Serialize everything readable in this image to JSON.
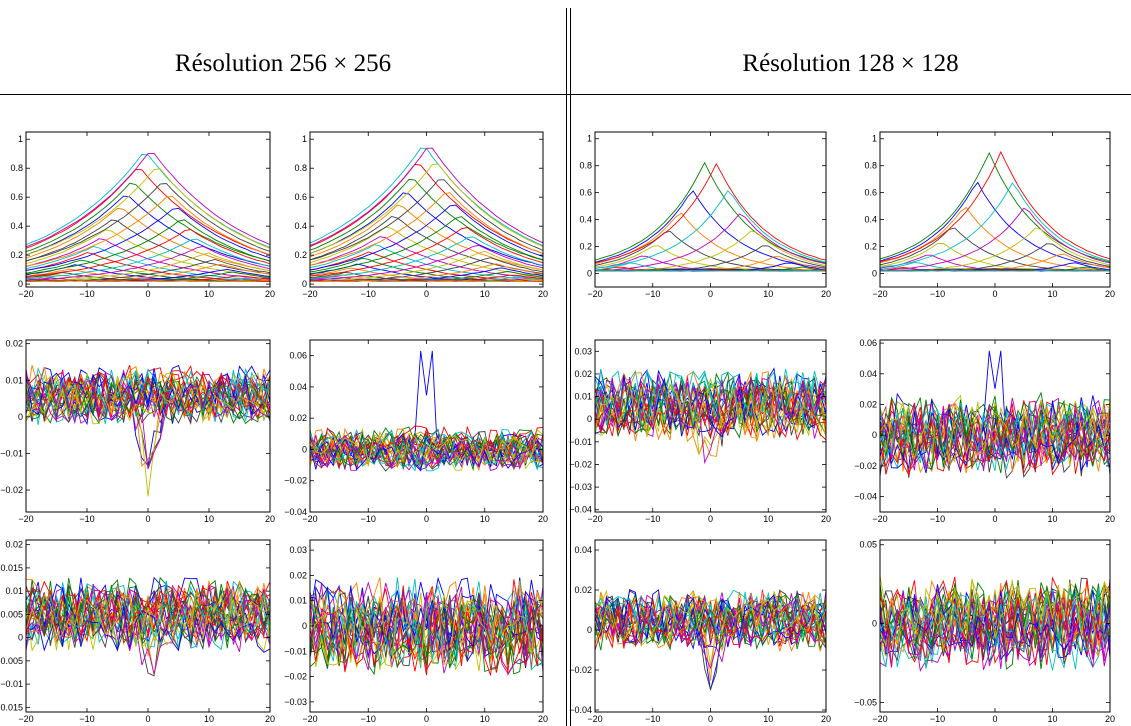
{
  "headers": {
    "left": "Résolution 256 × 256",
    "right": "Résolution 128 × 128"
  },
  "colors": [
    "#0000ff",
    "#008000",
    "#ff0000",
    "#00bfbf",
    "#bf00bf",
    "#bfbf00",
    "#404040",
    "#ff8000"
  ],
  "chart_data": [
    {
      "type": "line",
      "panel": "256 row1 col1",
      "xlim": [
        -20,
        20
      ],
      "ylim": [
        -0.02,
        1.05
      ],
      "xticks": [
        -20,
        -10,
        0,
        10,
        20
      ],
      "yticks": [
        0,
        0.2,
        0.4,
        0.6,
        0.8,
        1
      ],
      "ytick_labels": [
        "0",
        "0.2",
        "0.4",
        "0.6",
        "0.8",
        "1"
      ],
      "profile": {
        "kind": "peaks",
        "count": 40,
        "peak": 0.96,
        "width": 14
      }
    },
    {
      "type": "line",
      "panel": "256 row1 col2",
      "xlim": [
        -20,
        20
      ],
      "ylim": [
        -0.02,
        1.05
      ],
      "xticks": [
        -20,
        -10,
        0,
        10,
        20
      ],
      "yticks": [
        0,
        0.2,
        0.4,
        0.6,
        0.8,
        1
      ],
      "ytick_labels": [
        "0",
        "0.2",
        "0.4",
        "0.6",
        "0.8",
        "1"
      ],
      "profile": {
        "kind": "peaks",
        "count": 40,
        "peak": 1.0,
        "width": 14
      }
    },
    {
      "type": "line",
      "panel": "128 row1 col1",
      "xlim": [
        -20,
        20
      ],
      "ylim": [
        -0.1,
        1.05
      ],
      "xticks": [
        -20,
        -10,
        0,
        10,
        20
      ],
      "yticks": [
        0,
        0.2,
        0.4,
        0.6,
        0.8,
        1
      ],
      "ytick_labels": [
        "0",
        "0.2",
        "0.4",
        "0.6",
        "0.8",
        "1"
      ],
      "profile": {
        "kind": "peaks",
        "count": 20,
        "peak": 0.91,
        "width": 8
      }
    },
    {
      "type": "line",
      "panel": "128 row1 col2",
      "xlim": [
        -20,
        20
      ],
      "ylim": [
        -0.1,
        1.05
      ],
      "xticks": [
        -20,
        -10,
        0,
        10,
        20
      ],
      "yticks": [
        0,
        0.2,
        0.4,
        0.6,
        0.8,
        1
      ],
      "ytick_labels": [
        "0",
        "0.2",
        "0.4",
        "0.6",
        "0.8",
        "1"
      ],
      "profile": {
        "kind": "peaks",
        "count": 20,
        "peak": 1.0,
        "width": 8
      }
    },
    {
      "type": "line",
      "panel": "256 row2 col1",
      "xlim": [
        -20,
        20
      ],
      "ylim": [
        -0.026,
        0.021
      ],
      "xticks": [
        -20,
        -10,
        0,
        10,
        20
      ],
      "yticks": [
        -0.02,
        -0.01,
        0,
        0.01,
        0.02
      ],
      "ytick_labels": [
        "−0.02",
        "−0.01",
        "0",
        "0.01",
        "0.02"
      ],
      "profile": {
        "kind": "noise",
        "base": 0.006,
        "amp": 0.006,
        "count": 30,
        "dip": -0.024,
        "peak_amp": 0
      }
    },
    {
      "type": "line",
      "panel": "256 row2 col2",
      "xlim": [
        -20,
        20
      ],
      "ylim": [
        -0.04,
        0.07
      ],
      "xticks": [
        -20,
        -10,
        0,
        10,
        20
      ],
      "yticks": [
        -0.04,
        -0.02,
        0,
        0.02,
        0.04,
        0.06
      ],
      "ytick_labels": [
        "−0.04",
        "−0.02",
        "0",
        "0.02",
        "0.04",
        "0.06"
      ],
      "profile": {
        "kind": "noise",
        "base": 0,
        "amp": 0.011,
        "count": 30,
        "dip": 0,
        "peak_amp": 0.063
      }
    },
    {
      "type": "line",
      "panel": "128 row2 col1",
      "xlim": [
        -20,
        20
      ],
      "ylim": [
        -0.041,
        0.035
      ],
      "xticks": [
        -20,
        -10,
        0,
        10,
        20
      ],
      "yticks": [
        -0.04,
        -0.03,
        -0.02,
        -0.01,
        0,
        0.01,
        0.02,
        0.03
      ],
      "ytick_labels": [
        "−0.04",
        "−0.03",
        "−0.02",
        "−0.01",
        "0",
        "0.01",
        "0.02",
        "0.03"
      ],
      "profile": {
        "kind": "noise",
        "base": 0.006,
        "amp": 0.012,
        "count": 30,
        "dip": -0.03,
        "peak_amp": 0
      }
    },
    {
      "type": "line",
      "panel": "128 row2 col2",
      "xlim": [
        -20,
        20
      ],
      "ylim": [
        -0.05,
        0.062
      ],
      "xticks": [
        -20,
        -10,
        0,
        10,
        20
      ],
      "yticks": [
        -0.04,
        -0.02,
        0,
        0.02,
        0.04,
        0.06
      ],
      "ytick_labels": [
        "−0.04",
        "−0.02",
        "0",
        "0.02",
        "0.04",
        "0.06"
      ],
      "profile": {
        "kind": "noise",
        "base": 0,
        "amp": 0.02,
        "count": 30,
        "dip": 0,
        "peak_amp": 0.055
      }
    },
    {
      "type": "line",
      "panel": "256 row3 col1",
      "xlim": [
        -20,
        20
      ],
      "ylim": [
        -0.016,
        0.021
      ],
      "xticks": [
        -20,
        -10,
        0,
        10,
        20
      ],
      "yticks": [
        -0.015,
        -0.01,
        -0.005,
        0,
        0.005,
        0.01,
        0.015,
        0.02
      ],
      "ytick_labels": [
        "−0.015",
        "−0.01",
        "−0.005",
        "0",
        "0.005",
        "0.01",
        "0.015",
        "0.02"
      ],
      "profile": {
        "kind": "noise",
        "base": 0.005,
        "amp": 0.006,
        "count": 30,
        "dip": -0.012,
        "peak_amp": 0
      }
    },
    {
      "type": "line",
      "panel": "256 row3 col2",
      "xlim": [
        -20,
        20
      ],
      "ylim": [
        -0.034,
        0.034
      ],
      "xticks": [
        -20,
        -10,
        0,
        10,
        20
      ],
      "yticks": [
        -0.03,
        -0.02,
        -0.01,
        0,
        0.01,
        0.02,
        0.03
      ],
      "ytick_labels": [
        "−0.03",
        "−0.02",
        "−0.01",
        "0",
        "0.01",
        "0.02",
        "0.03"
      ],
      "profile": {
        "kind": "noise",
        "base": 0,
        "amp": 0.014,
        "count": 30,
        "dip": 0,
        "peak_amp": 0
      }
    },
    {
      "type": "line",
      "panel": "128 row3 col1",
      "xlim": [
        -20,
        20
      ],
      "ylim": [
        -0.041,
        0.045
      ],
      "xticks": [
        -20,
        -10,
        0,
        10,
        20
      ],
      "yticks": [
        -0.04,
        -0.02,
        0,
        0.02,
        0.04
      ],
      "ytick_labels": [
        "−0.04",
        "−0.02",
        "0",
        "0.02",
        "0.04"
      ],
      "profile": {
        "kind": "noise",
        "base": 0.005,
        "amp": 0.012,
        "count": 30,
        "dip": -0.032,
        "peak_amp": 0
      }
    },
    {
      "type": "line",
      "panel": "128 row3 col2",
      "xlim": [
        -20,
        20
      ],
      "ylim": [
        -0.056,
        0.053
      ],
      "xticks": [
        -20,
        -10,
        0,
        10,
        20
      ],
      "yticks": [
        -0.05,
        0,
        0.05
      ],
      "ytick_labels": [
        "−0.05",
        "0",
        "0.05"
      ],
      "profile": {
        "kind": "noise",
        "base": 0,
        "amp": 0.022,
        "count": 30,
        "dip": 0,
        "peak_amp": 0
      }
    }
  ]
}
